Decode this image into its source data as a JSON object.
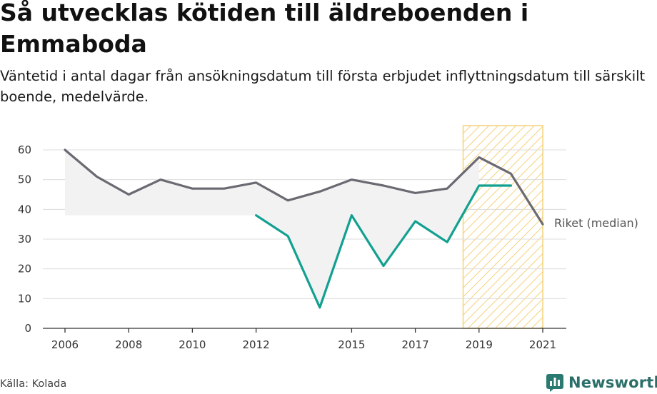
{
  "title": "Så utvecklas kötiden till äldreboenden i Emmaboda",
  "subtitle": "Väntetid i antal dagar från ansökningsdatum till första erbjudet inflyttningsdatum till särskilt boende, medelvärde.",
  "source": "Källa: Kolada",
  "logo_text": "Newsworthy",
  "chart_data": {
    "type": "line",
    "x_tick_labels": [
      "2006",
      "2008",
      "2010",
      "2012",
      "2015",
      "2017",
      "2019",
      "2021"
    ],
    "y_tick_labels": [
      "0",
      "10",
      "20",
      "30",
      "40",
      "50",
      "60"
    ],
    "ylim": [
      0,
      60
    ],
    "xlim": [
      2006,
      2021
    ],
    "grid": true,
    "highlight_range": [
      2018.5,
      2021
    ],
    "series": [
      {
        "name": "Riket (median)",
        "color": "#6b6a72",
        "x": [
          2006,
          2007,
          2008,
          2009,
          2010,
          2011,
          2012,
          2013,
          2014,
          2015,
          2016,
          2017,
          2018,
          2019,
          2020,
          2021
        ],
        "y": [
          60,
          51,
          45,
          50,
          47,
          47,
          49,
          43,
          46,
          50,
          48,
          45.5,
          47,
          57.5,
          52,
          35
        ]
      },
      {
        "color": "#12a090",
        "x": [
          2012,
          2013,
          2014,
          2015,
          2016,
          2017,
          2018,
          2019,
          2020
        ],
        "y": [
          38,
          31,
          7,
          38,
          21,
          36,
          29,
          48,
          48
        ]
      }
    ]
  }
}
